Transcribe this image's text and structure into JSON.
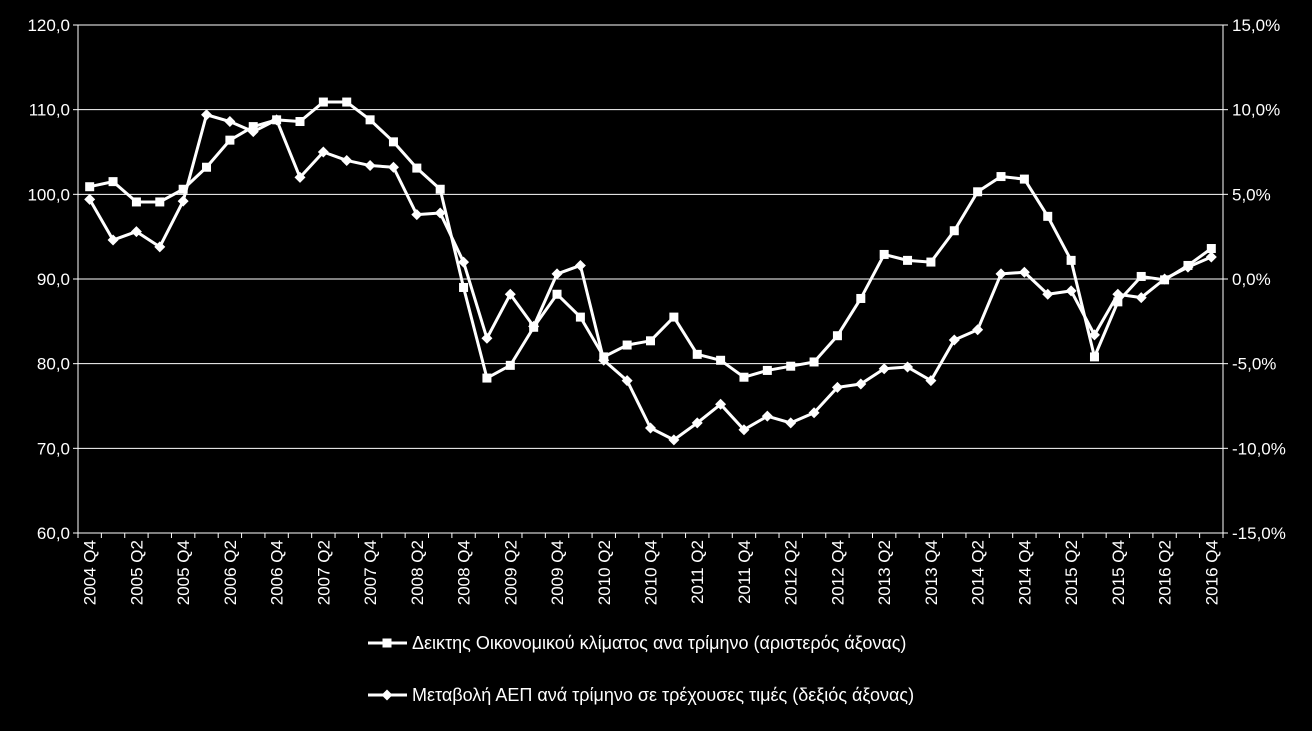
{
  "chart_data": {
    "type": "line",
    "title": "",
    "xlabel": "",
    "ylabel_left": "",
    "ylabel_right": "",
    "grid": true,
    "legend_position": "bottom",
    "background": "#000000",
    "series_color": "#ffffff",
    "x": [
      "2004 Q4",
      "2005 Q1",
      "2005 Q2",
      "2005 Q3",
      "2005 Q4",
      "2006 Q1",
      "2006 Q2",
      "2006 Q3",
      "2006 Q4",
      "2007 Q1",
      "2007 Q2",
      "2007 Q3",
      "2007 Q4",
      "2008 Q1",
      "2008 Q2",
      "2008 Q3",
      "2008 Q4",
      "2009 Q1",
      "2009 Q2",
      "2009 Q3",
      "2009 Q4",
      "2010 Q1",
      "2010 Q2",
      "2010 Q3",
      "2010 Q4",
      "2011 Q1",
      "2011 Q2",
      "2011 Q3",
      "2011 Q4",
      "2012 Q1",
      "2012 Q2",
      "2012 Q3",
      "2012 Q4",
      "2013 Q1",
      "2013 Q2",
      "2013 Q3",
      "2013 Q4",
      "2014 Q1",
      "2014 Q2",
      "2014 Q3",
      "2014 Q4",
      "2015 Q1",
      "2015 Q2",
      "2015 Q3",
      "2015 Q4",
      "2016 Q1",
      "2016 Q2",
      "2016 Q3",
      "2016 Q4"
    ],
    "x_tick_labels": [
      "2004 Q4",
      "",
      "2005 Q2",
      "",
      "2005 Q4",
      "",
      "2006 Q2",
      "",
      "2006 Q4",
      "",
      "2007 Q2",
      "",
      "2007 Q4",
      "",
      "2008 Q2",
      "",
      "2008 Q4",
      "",
      "2009 Q2",
      "",
      "2009 Q4",
      "",
      "2010 Q2",
      "",
      "2010 Q4",
      "",
      "2011 Q2",
      "",
      "2011 Q4",
      "",
      "2012 Q2",
      "",
      "2012 Q4",
      "",
      "2013 Q2",
      "",
      "2013 Q4",
      "",
      "2014 Q2",
      "",
      "2014 Q4",
      "",
      "2015 Q2",
      "",
      "2015 Q4",
      "",
      "2016 Q2",
      "",
      "2016 Q4"
    ],
    "y_left": {
      "min": 60,
      "max": 120,
      "step": 10,
      "tick_labels": [
        "60,0",
        "70,0",
        "80,0",
        "90,0",
        "100,0",
        "110,0",
        "120,0"
      ]
    },
    "y_right": {
      "min": -15,
      "max": 15,
      "step": 5,
      "tick_labels": [
        "-15,0%",
        "-10,0%",
        "-5,0%",
        "0,0%",
        "5,0%",
        "10,0%",
        "15,0%"
      ]
    },
    "series": [
      {
        "name": "Δεικτης Οικονομικού κλίματος ανα τρίμηνο (αριστερός άξονας)",
        "axis": "left",
        "marker": "square",
        "values": [
          100.9,
          101.5,
          99.1,
          99.1,
          100.6,
          103.2,
          106.4,
          108.0,
          108.8,
          108.6,
          110.9,
          110.9,
          108.8,
          106.2,
          103.1,
          100.6,
          89.0,
          78.3,
          79.8,
          84.3,
          88.2,
          85.5,
          80.8,
          82.2,
          82.7,
          85.5,
          81.1,
          80.4,
          78.4,
          79.2,
          79.7,
          80.2,
          83.3,
          87.7,
          92.9,
          92.2,
          92.0,
          95.7,
          100.3,
          102.1,
          101.8,
          97.4,
          92.2,
          80.8,
          87.3,
          90.3,
          89.9,
          91.6,
          93.6
        ]
      },
      {
        "name": "Μεταβολή ΑΕΠ ανά τρίμηνο σε τρέχουσες τιμές (δεξιός άξονας)",
        "axis": "right",
        "marker": "diamond",
        "values": [
          4.7,
          2.3,
          2.8,
          1.9,
          4.6,
          9.7,
          9.3,
          8.7,
          9.4,
          6.0,
          7.5,
          7.0,
          6.7,
          6.6,
          3.8,
          3.9,
          1.0,
          -3.5,
          -0.9,
          -2.8,
          0.3,
          0.8,
          -4.8,
          -6.0,
          -8.8,
          -9.5,
          -8.5,
          -7.4,
          -8.9,
          -8.1,
          -8.5,
          -7.9,
          -6.4,
          -6.2,
          -5.3,
          -5.2,
          -6.0,
          -3.6,
          -3.0,
          0.3,
          0.4,
          -0.9,
          -0.7,
          -3.3,
          -0.9,
          -1.1,
          0.0,
          0.7,
          1.3
        ]
      }
    ]
  }
}
